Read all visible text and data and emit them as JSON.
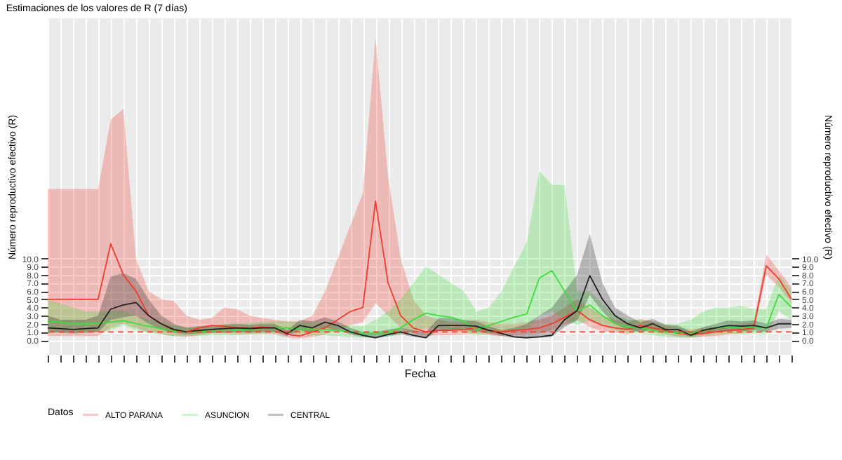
{
  "chart_data": {
    "type": "line",
    "title": "Estimaciones de los valores de R (7 días)",
    "xlabel": "Fecha",
    "ylabel": "Número reproductivo efectivo (R)",
    "y2label": "Número reproductivo efectivo (R)",
    "legend_title": "Datos",
    "legend": "bottom",
    "grid": true,
    "tick_labels": "y",
    "categories": [
      null,
      null,
      null,
      null,
      null,
      null,
      null,
      null,
      null,
      null,
      null,
      null,
      null,
      null,
      null,
      null,
      null,
      null,
      null,
      null,
      null,
      null,
      null,
      null,
      null,
      null,
      null,
      null,
      null,
      null,
      null,
      null,
      null,
      null,
      null,
      null,
      null,
      null,
      null,
      null,
      null,
      null,
      null,
      null,
      null,
      null,
      null,
      null,
      null,
      null,
      null,
      null,
      null,
      null,
      null,
      null,
      null,
      null,
      null,
      null
    ],
    "ylim": [
      -1.8,
      39.4
    ],
    "yticks": [
      {
        "value": 0,
        "label": "0.0"
      },
      {
        "value": 1,
        "label": "1.0"
      },
      {
        "value": 2,
        "label": "2.0"
      },
      {
        "value": 3,
        "label": "3.0"
      },
      {
        "value": 4,
        "label": "4.0"
      },
      {
        "value": 5,
        "label": "5.0"
      },
      {
        "value": 6,
        "label": "6.0"
      },
      {
        "value": 7,
        "label": "7.0"
      },
      {
        "value": 8,
        "label": "8.0"
      },
      {
        "value": 9,
        "label": "9.0"
      },
      {
        "value": 10,
        "label": "10.0"
      }
    ],
    "y2lim": [
      -1.8,
      39.4
    ],
    "y2ticks": [
      {
        "value": 0,
        "label": "0.0"
      },
      {
        "value": 1,
        "label": "1.0"
      },
      {
        "value": 2,
        "label": "2.0"
      },
      {
        "value": 3,
        "label": "3.0"
      },
      {
        "value": 4,
        "label": "4.0"
      },
      {
        "value": 5,
        "label": "5.0"
      },
      {
        "value": 6,
        "label": "6.0"
      },
      {
        "value": 7,
        "label": "7.0"
      },
      {
        "value": 8,
        "label": "8.0"
      },
      {
        "value": 9,
        "label": "9.0"
      },
      {
        "value": 10,
        "label": "10.0"
      }
    ],
    "ref_lines": [
      {
        "axis": "y",
        "value": 1,
        "color": "#e8432f",
        "line_style": "dashed"
      }
    ],
    "series": [
      {
        "name": "ALTO PARANA",
        "color": "#f03c2e",
        "values": [
          5,
          5,
          5,
          5,
          5,
          11.8,
          8,
          6,
          3,
          2,
          1.2,
          1.0,
          1.5,
          1.8,
          1.7,
          1.5,
          1.5,
          1.6,
          1.5,
          0.7,
          0.5,
          1.0,
          1.5,
          2.5,
          3.5,
          4.0,
          17,
          7,
          3,
          1.5,
          1.0,
          1.2,
          1.2,
          1.3,
          1.5,
          1.2,
          1.0,
          1.2,
          1.3,
          1.5,
          2.0,
          2.8,
          3.6,
          2.5,
          1.8,
          1.5,
          1.3,
          1.8,
          1.5,
          1.2,
          0.8,
          0.7,
          0.8,
          1.0,
          1.2,
          1.3,
          1.5,
          9.1,
          7.5,
          5.0
        ],
        "lower": [
          0.5,
          0.5,
          0.5,
          0.5,
          0.5,
          1.5,
          2,
          1.5,
          1,
          0.7,
          0.5,
          0.4,
          0.6,
          0.8,
          0.8,
          0.7,
          0.7,
          0.8,
          0.7,
          0.3,
          0.2,
          0.4,
          0.7,
          1.2,
          1.8,
          2.2,
          4.5,
          3,
          1.5,
          0.8,
          0.5,
          0.6,
          0.6,
          0.7,
          0.8,
          0.6,
          0.5,
          0.6,
          0.7,
          0.8,
          1.2,
          1.8,
          2.5,
          1.6,
          1.1,
          0.9,
          0.7,
          1.2,
          0.9,
          0.7,
          0.4,
          0.3,
          0.4,
          0.5,
          0.7,
          0.8,
          0.9,
          8,
          6.5,
          4.5
        ],
        "upper": [
          18.5,
          18.5,
          18.5,
          18.5,
          18.5,
          27,
          28.3,
          10,
          6,
          5,
          4.8,
          3,
          2.5,
          2.7,
          4,
          3.8,
          3,
          2.7,
          2.5,
          2.3,
          2.3,
          3,
          6,
          10,
          14,
          18,
          37,
          20,
          10,
          5,
          3,
          2.5,
          2.2,
          2.2,
          2.5,
          2.2,
          2,
          2,
          2.2,
          2.5,
          3,
          4,
          5,
          4,
          3,
          2.5,
          2.2,
          2.6,
          2.3,
          1.8,
          1.5,
          1.3,
          1.5,
          1.6,
          1.8,
          2,
          2.2,
          10.5,
          8.5,
          6.5
        ]
      },
      {
        "name": "ASUNCION",
        "color": "#3ddc3d",
        "values": [
          2.3,
          2.2,
          2.0,
          2.0,
          2.1,
          2.2,
          2.4,
          2.0,
          1.7,
          1.4,
          1.1,
          1.0,
          1.0,
          1.1,
          1.2,
          1.2,
          1.3,
          1.4,
          1.5,
          1.5,
          1.4,
          1.3,
          1.3,
          1.2,
          1.0,
          0.8,
          0.8,
          0.9,
          1.5,
          2.5,
          3.3,
          3.0,
          2.8,
          2.3,
          1.3,
          1.8,
          2.3,
          2.8,
          3.2,
          7.6,
          8.5,
          6.0,
          3.5,
          4.3,
          3.0,
          2.0,
          1.6,
          1.5,
          1.2,
          1.0,
          0.9,
          0.8,
          1.2,
          1.5,
          1.6,
          1.5,
          1.6,
          1.5,
          5.6,
          4.0
        ],
        "lower": [
          0.8,
          0.9,
          0.9,
          0.9,
          1.0,
          1.2,
          1.8,
          1.2,
          0.9,
          0.7,
          0.5,
          0.5,
          0.5,
          0.6,
          0.6,
          0.6,
          0.7,
          0.7,
          0.8,
          0.8,
          0.7,
          0.6,
          0.6,
          0.5,
          0.4,
          0.3,
          0.3,
          0.4,
          0.7,
          1.0,
          1.5,
          1.4,
          1.2,
          1.0,
          0.6,
          0.8,
          1.0,
          1.2,
          1.4,
          3.0,
          3.5,
          2.5,
          1.8,
          2.5,
          1.8,
          1.2,
          0.9,
          0.8,
          0.6,
          0.4,
          0.3,
          0.3,
          0.5,
          0.7,
          0.8,
          0.7,
          0.8,
          0.7,
          3.5,
          2.5
        ],
        "upper": [
          5,
          4.5,
          4,
          3.5,
          3.5,
          3.5,
          3.6,
          3,
          2.5,
          2.2,
          1.8,
          1.6,
          1.6,
          1.8,
          2,
          2,
          2.1,
          2.2,
          2.3,
          2.3,
          2.2,
          2.1,
          2,
          1.9,
          1.8,
          1.7,
          2.5,
          3.5,
          5,
          7,
          9,
          8,
          7,
          6,
          3.5,
          4,
          6,
          9,
          12,
          20.7,
          19,
          19,
          6,
          6,
          4.5,
          3,
          2.5,
          2.5,
          2.2,
          2,
          2,
          2.5,
          3.5,
          4,
          4,
          4.2,
          3.8,
          3.8,
          8,
          6
        ]
      },
      {
        "name": "CENTRAL",
        "color": "#222222",
        "values": [
          1.5,
          1.4,
          1.3,
          1.4,
          1.5,
          3.8,
          4.3,
          4.6,
          3.0,
          2.0,
          1.3,
          1.0,
          1.2,
          1.3,
          1.4,
          1.5,
          1.4,
          1.5,
          1.5,
          0.8,
          1.8,
          1.5,
          2.2,
          1.8,
          1.0,
          0.6,
          0.3,
          0.7,
          1.0,
          0.6,
          0.3,
          1.8,
          1.8,
          1.8,
          1.7,
          1.2,
          0.8,
          0.4,
          0.3,
          0.4,
          0.6,
          2.5,
          3.6,
          7.9,
          5.0,
          3.0,
          2.0,
          1.5,
          2.0,
          1.3,
          1.3,
          0.6,
          1.2,
          1.5,
          1.8,
          1.7,
          1.8,
          1.5,
          2.0,
          2.0
        ],
        "lower": [
          1.0,
          0.9,
          0.8,
          0.9,
          1.0,
          2.5,
          2.8,
          3.0,
          2.0,
          1.3,
          0.9,
          0.7,
          0.8,
          0.9,
          0.9,
          1.0,
          0.9,
          1.0,
          1.0,
          0.5,
          1.2,
          1.0,
          1.5,
          1.2,
          0.7,
          0.4,
          0.2,
          0.5,
          0.7,
          0.4,
          0.2,
          1.2,
          1.2,
          1.2,
          1.1,
          0.8,
          0.5,
          0.3,
          0.2,
          0.3,
          0.4,
          1.6,
          2.4,
          5.5,
          3.5,
          2.0,
          1.3,
          1.0,
          1.3,
          0.9,
          0.9,
          0.4,
          0.8,
          1.0,
          1.2,
          1.1,
          1.2,
          1.0,
          1.4,
          1.5
        ],
        "upper": [
          3,
          2.5,
          2.5,
          2.5,
          3,
          7.8,
          8.2,
          7.5,
          5,
          3,
          2,
          1.5,
          1.7,
          1.8,
          1.9,
          2,
          1.9,
          2,
          2,
          1.2,
          2.5,
          2.3,
          2.8,
          2.3,
          1.5,
          1,
          1,
          1.3,
          1.5,
          1.2,
          1,
          2.7,
          2.7,
          2.5,
          2.3,
          1.7,
          1.2,
          1.5,
          2,
          3,
          4,
          6,
          8,
          13,
          7,
          4,
          3,
          2.2,
          2.6,
          1.9,
          1.8,
          1,
          1.6,
          2,
          2.4,
          2.3,
          2.4,
          2,
          2.6,
          2.5
        ]
      }
    ]
  }
}
